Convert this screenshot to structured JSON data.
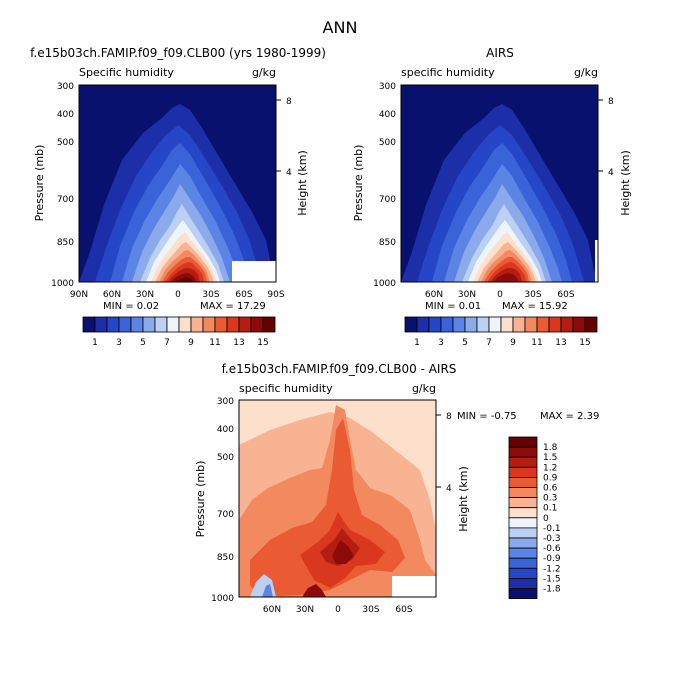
{
  "page_title": "ANN",
  "chart_data": [
    {
      "type": "contour",
      "id": "model",
      "title": "f.e15b03ch.FAMIP.f09_f09.CLB00 (yrs 1980-1999)",
      "left_label": "Specific humidity",
      "right_label": "g/kg",
      "ylabel": "Pressure (mb)",
      "right_axis_label": "Height (km)",
      "y_ticks": [
        "300",
        "400",
        "500",
        "700",
        "850",
        "1000"
      ],
      "right_ticks": [
        "8",
        "4"
      ],
      "x_ticks": [
        "90N",
        "60N",
        "30N",
        "0",
        "30S",
        "60S",
        "90S"
      ],
      "min_text": "MIN =   0.02",
      "max_text": "MAX =   17.29",
      "levels": [
        1,
        2,
        3,
        4,
        5,
        6,
        7,
        8,
        9,
        10,
        11,
        12,
        13,
        14,
        15
      ],
      "colorbar_labels": [
        "1",
        "3",
        "5",
        "7",
        "9",
        "11",
        "13",
        "15"
      ]
    },
    {
      "type": "contour",
      "id": "obs",
      "title": "AIRS",
      "left_label": "specific humidity",
      "right_label": "g/kg",
      "ylabel": "Pressure (mb)",
      "right_axis_label": "Height (km)",
      "y_ticks": [
        "300",
        "400",
        "500",
        "700",
        "850",
        "1000"
      ],
      "right_ticks": [
        "8",
        "4"
      ],
      "x_ticks": [
        "60N",
        "30N",
        "0",
        "30S",
        "60S"
      ],
      "min_text": "MIN =   0.01",
      "max_text": "MAX =   15.92",
      "levels": [
        1,
        2,
        3,
        4,
        5,
        6,
        7,
        8,
        9,
        10,
        11,
        12,
        13,
        14,
        15
      ],
      "colorbar_labels": [
        "1",
        "3",
        "5",
        "7",
        "9",
        "11",
        "13",
        "15"
      ]
    },
    {
      "type": "contour",
      "id": "diff",
      "title": "f.e15b03ch.FAMIP.f09_f09.CLB00 - AIRS",
      "left_label": "specific humidity",
      "right_label": "g/kg",
      "ylabel": "Pressure (mb)",
      "right_axis_label": "Height (km)",
      "y_ticks": [
        "300",
        "400",
        "500",
        "700",
        "850",
        "1000"
      ],
      "right_ticks": [
        "8",
        "4"
      ],
      "x_ticks": [
        "60N",
        "30N",
        "0",
        "30S",
        "60S"
      ],
      "min_text": "MIN =   -0.75",
      "max_text": "MAX =    2.39",
      "levels": [
        -1.8,
        -1.5,
        -1.2,
        -0.9,
        -0.6,
        -0.3,
        -0.1,
        0,
        0.1,
        0.3,
        0.6,
        0.9,
        1.2,
        1.5,
        1.8
      ],
      "colorbar_labels": [
        "1.8",
        "1.5",
        "1.2",
        "0.9",
        "0.6",
        "0.3",
        "0.1",
        "0",
        "-0.1",
        "-0.3",
        "-0.6",
        "-0.9",
        "-1.2",
        "-1.5",
        "-1.8"
      ]
    }
  ],
  "colors": {
    "scale": [
      "#08126e",
      "#1d2fa8",
      "#2646c8",
      "#3b63d9",
      "#5b84e4",
      "#8aaaec",
      "#bcd0f3",
      "#eef4fb",
      "#fde0cc",
      "#f8b392",
      "#f3895f",
      "#ea5a33",
      "#d9381f",
      "#b41e12",
      "#8c0a08",
      "#640000"
    ]
  }
}
